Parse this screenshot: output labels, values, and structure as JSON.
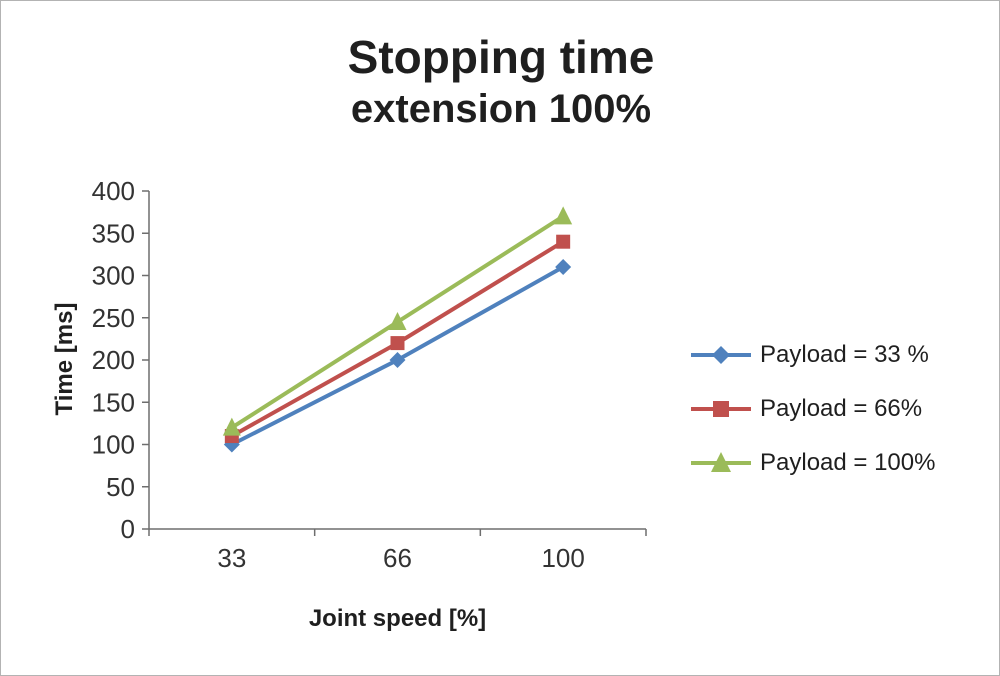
{
  "title": {
    "line1": "Stopping time",
    "line2": "extension 100%"
  },
  "chart_data": {
    "type": "line",
    "x": [
      33,
      66,
      100
    ],
    "xlabel": "Joint speed [%]",
    "ylabel": "Time [ms]",
    "ylim": [
      0,
      400
    ],
    "ytick_step": 50,
    "grid": false,
    "legend_position": "right",
    "series": [
      {
        "name": "Payload = 33 %",
        "marker": "diamond",
        "color": "#4F81BD",
        "values": [
          100,
          200,
          310
        ]
      },
      {
        "name": "Payload =  66%",
        "marker": "square",
        "color": "#C0504D",
        "values": [
          110,
          220,
          340
        ]
      },
      {
        "name": "Payload =  100%",
        "marker": "triangle",
        "color": "#9BBB59",
        "values": [
          120,
          245,
          370
        ]
      }
    ]
  }
}
